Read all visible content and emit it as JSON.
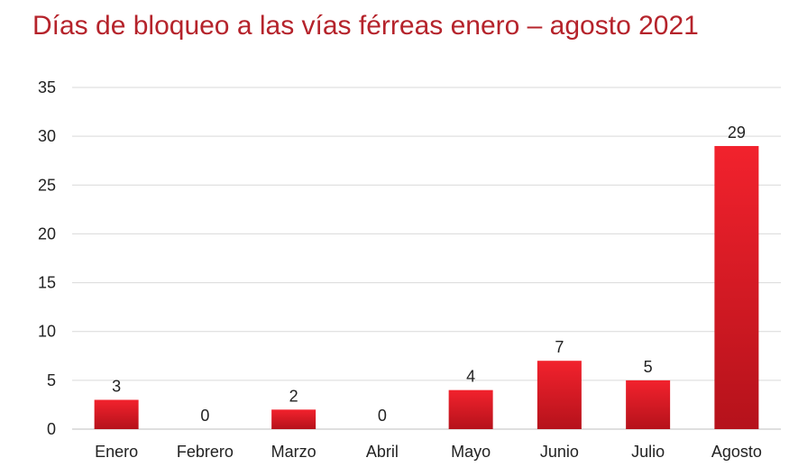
{
  "chart_data": {
    "type": "bar",
    "title": "Días de bloqueo a las vías férreas enero – agosto 2021",
    "xlabel": "",
    "ylabel": "",
    "categories": [
      "Enero",
      "Febrero",
      "Marzo",
      "Abril",
      "Mayo",
      "Junio",
      "Julio",
      "Agosto"
    ],
    "values": [
      3,
      0,
      2,
      0,
      4,
      7,
      5,
      29
    ],
    "data_labels": [
      "3",
      "0",
      "2",
      "0",
      "4",
      "7",
      "5",
      "29"
    ],
    "ylim": [
      0,
      35
    ],
    "yticks": [
      0,
      5,
      10,
      15,
      20,
      25,
      30,
      35
    ],
    "ytick_labels": [
      "0",
      "5",
      "10",
      "15",
      "20",
      "25",
      "30",
      "35"
    ],
    "grid": true,
    "legend": "none",
    "colors": {
      "bar_top": "#f2222d",
      "bar_bottom": "#b5121b",
      "title": "#b5232b"
    }
  }
}
